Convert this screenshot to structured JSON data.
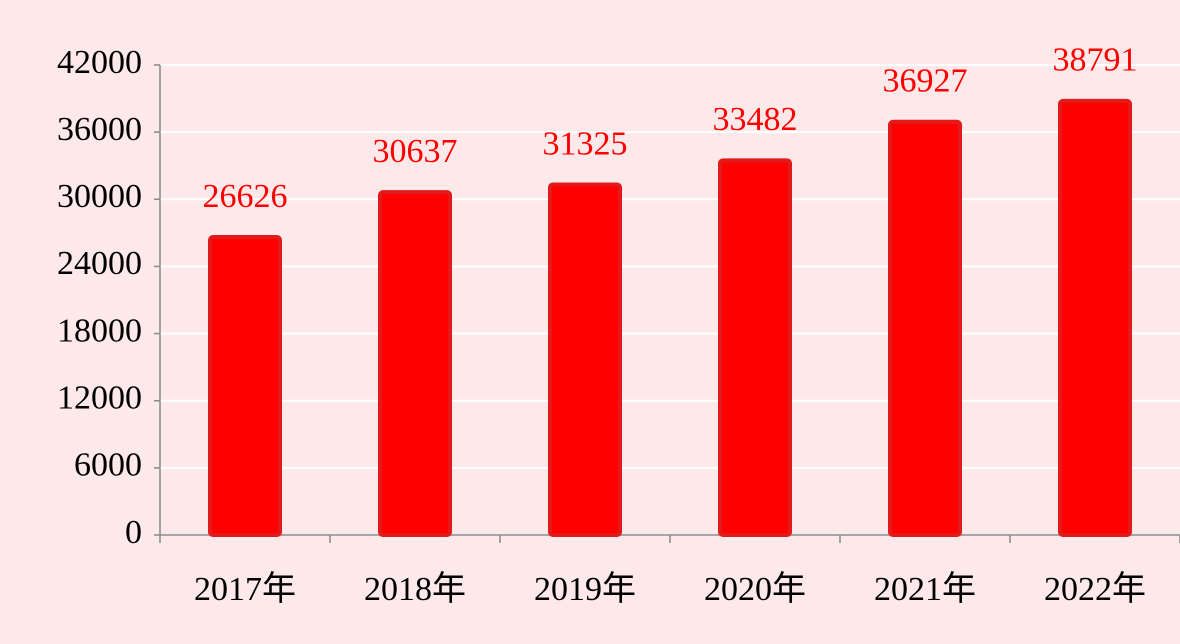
{
  "chart_data": {
    "type": "bar",
    "categories": [
      "2017年",
      "2018年",
      "2019年",
      "2020年",
      "2021年",
      "2022年"
    ],
    "values": [
      26626,
      30637,
      31325,
      33482,
      36927,
      38791
    ],
    "color": "#ff0000",
    "ylim": [
      0,
      42000
    ],
    "yticks": [
      0,
      6000,
      12000,
      18000,
      24000,
      30000,
      36000,
      42000
    ],
    "grid": true
  }
}
